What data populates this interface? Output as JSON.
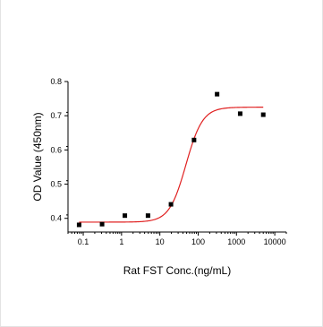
{
  "chart_data": {
    "type": "scatter",
    "title": "",
    "xlabel": "Rat FST Conc.(ng/mL)",
    "ylabel": "OD Value (450nm)",
    "x_scale": "log",
    "xlim": [
      0.04,
      20000
    ],
    "ylim": [
      0.36,
      0.8
    ],
    "x_ticks": [
      {
        "value": 0.1,
        "label": "0.1"
      },
      {
        "value": 1,
        "label": "1"
      },
      {
        "value": 10,
        "label": "10"
      },
      {
        "value": 100,
        "label": "100"
      },
      {
        "value": 1000,
        "label": "1000"
      },
      {
        "value": 10000,
        "label": "10000"
      }
    ],
    "y_ticks": [
      {
        "value": 0.4,
        "label": "0.4"
      },
      {
        "value": 0.5,
        "label": "0.5"
      },
      {
        "value": 0.6,
        "label": "0.6"
      },
      {
        "value": 0.7,
        "label": "0.7"
      },
      {
        "value": 0.8,
        "label": "0.8"
      }
    ],
    "grid": false,
    "series": [
      {
        "type": "scatter",
        "color": "#000000",
        "marker": "square",
        "points": [
          {
            "x": 0.078,
            "y": 0.381
          },
          {
            "x": 0.31,
            "y": 0.383
          },
          {
            "x": 1.22,
            "y": 0.408
          },
          {
            "x": 4.9,
            "y": 0.408
          },
          {
            "x": 19.5,
            "y": 0.441
          },
          {
            "x": 78,
            "y": 0.629
          },
          {
            "x": 312,
            "y": 0.763
          },
          {
            "x": 1250,
            "y": 0.706
          },
          {
            "x": 5000,
            "y": 0.703
          }
        ]
      },
      {
        "type": "line",
        "color": "#e02020",
        "fit": "4PL",
        "params": {
          "bottom": 0.389,
          "top": 0.725,
          "ec50": 48,
          "hill": 2.0
        }
      }
    ]
  }
}
